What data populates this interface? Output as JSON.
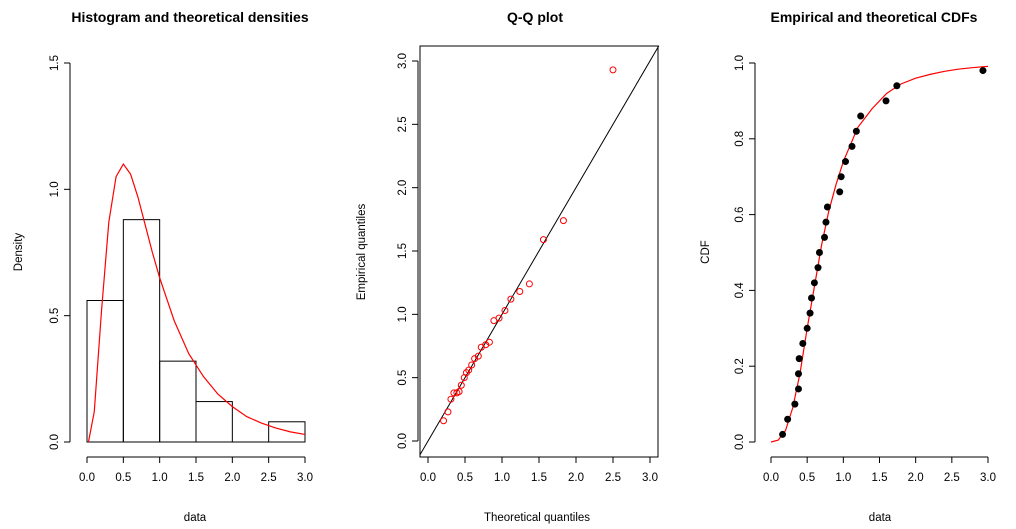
{
  "chart_data": [
    {
      "type": "histogram",
      "title": "Histogram and theoretical densities",
      "xlabel": "data",
      "ylabel": "Density",
      "xlim": [
        0,
        3
      ],
      "ylim": [
        0,
        1.5
      ],
      "x_ticks": [
        "0.0",
        "0.5",
        "1.0",
        "1.5",
        "2.0",
        "2.5",
        "3.0"
      ],
      "y_ticks": [
        "0.0",
        "0.5",
        "1.0",
        "1.5"
      ],
      "bins": [
        {
          "start": 0.0,
          "end": 0.5,
          "density": 0.56
        },
        {
          "start": 0.5,
          "end": 1.0,
          "density": 0.88
        },
        {
          "start": 1.0,
          "end": 1.5,
          "density": 0.32
        },
        {
          "start": 1.5,
          "end": 2.0,
          "density": 0.16
        },
        {
          "start": 2.0,
          "end": 2.5,
          "density": 0.0
        },
        {
          "start": 2.5,
          "end": 3.0,
          "density": 0.08
        }
      ],
      "density_curve": {
        "color": "#ff0000",
        "x": [
          0.02,
          0.1,
          0.2,
          0.3,
          0.4,
          0.5,
          0.6,
          0.7,
          0.8,
          0.9,
          1.0,
          1.2,
          1.4,
          1.6,
          1.8,
          2.0,
          2.2,
          2.4,
          2.6,
          2.8,
          3.0
        ],
        "y": [
          0.0,
          0.12,
          0.52,
          0.87,
          1.05,
          1.1,
          1.06,
          0.97,
          0.86,
          0.75,
          0.65,
          0.48,
          0.35,
          0.26,
          0.19,
          0.14,
          0.1,
          0.075,
          0.055,
          0.04,
          0.03
        ]
      }
    },
    {
      "type": "scatter",
      "title": "Q-Q plot",
      "xlabel": "Theoretical quantiles",
      "ylabel": "Empirical quantiles",
      "xlim": [
        0,
        3
      ],
      "ylim": [
        0,
        3
      ],
      "x_ticks": [
        "0.0",
        "0.5",
        "1.0",
        "1.5",
        "2.0",
        "2.5",
        "3.0"
      ],
      "y_ticks": [
        "0.0",
        "0.5",
        "1.0",
        "1.5",
        "2.0",
        "2.5",
        "3.0"
      ],
      "point_color": "#ff0000",
      "reference_line": "y = x",
      "x": [
        0.21,
        0.27,
        0.31,
        0.35,
        0.39,
        0.42,
        0.45,
        0.49,
        0.52,
        0.55,
        0.59,
        0.63,
        0.68,
        0.72,
        0.78,
        0.83,
        0.89,
        0.96,
        1.04,
        1.12,
        1.24,
        1.37,
        1.56,
        1.83,
        2.5
      ],
      "y": [
        0.16,
        0.23,
        0.33,
        0.38,
        0.38,
        0.39,
        0.44,
        0.5,
        0.54,
        0.56,
        0.6,
        0.65,
        0.67,
        0.74,
        0.76,
        0.78,
        0.95,
        0.97,
        1.03,
        1.12,
        1.18,
        1.24,
        1.59,
        1.74,
        2.93
      ]
    },
    {
      "type": "scatter",
      "title": "Empirical and theoretical CDFs",
      "xlabel": "data",
      "ylabel": "CDF",
      "xlim": [
        0,
        3
      ],
      "ylim": [
        0,
        1
      ],
      "x_ticks": [
        "0.0",
        "0.5",
        "1.0",
        "1.5",
        "2.0",
        "2.5",
        "3.0"
      ],
      "y_ticks": [
        "0.0",
        "0.2",
        "0.4",
        "0.6",
        "0.8",
        "1.0"
      ],
      "point_color": "#000000",
      "x": [
        0.16,
        0.23,
        0.33,
        0.38,
        0.38,
        0.39,
        0.44,
        0.5,
        0.54,
        0.56,
        0.6,
        0.65,
        0.67,
        0.74,
        0.76,
        0.78,
        0.95,
        0.97,
        1.03,
        1.12,
        1.18,
        1.24,
        1.59,
        1.74,
        2.93
      ],
      "y": [
        0.02,
        0.06,
        0.1,
        0.14,
        0.18,
        0.22,
        0.26,
        0.3,
        0.34,
        0.38,
        0.42,
        0.46,
        0.5,
        0.54,
        0.58,
        0.62,
        0.66,
        0.7,
        0.74,
        0.78,
        0.82,
        0.86,
        0.9,
        0.94,
        0.98
      ],
      "cdf_curve": {
        "color": "#ff0000",
        "x": [
          0.0,
          0.1,
          0.2,
          0.3,
          0.4,
          0.5,
          0.6,
          0.7,
          0.8,
          0.9,
          1.0,
          1.2,
          1.4,
          1.6,
          1.8,
          2.0,
          2.2,
          2.4,
          2.6,
          2.8,
          3.0
        ],
        "y": [
          0.0,
          0.005,
          0.03,
          0.09,
          0.18,
          0.3,
          0.41,
          0.52,
          0.61,
          0.68,
          0.74,
          0.83,
          0.88,
          0.92,
          0.945,
          0.96,
          0.97,
          0.978,
          0.984,
          0.988,
          0.991
        ]
      }
    }
  ]
}
